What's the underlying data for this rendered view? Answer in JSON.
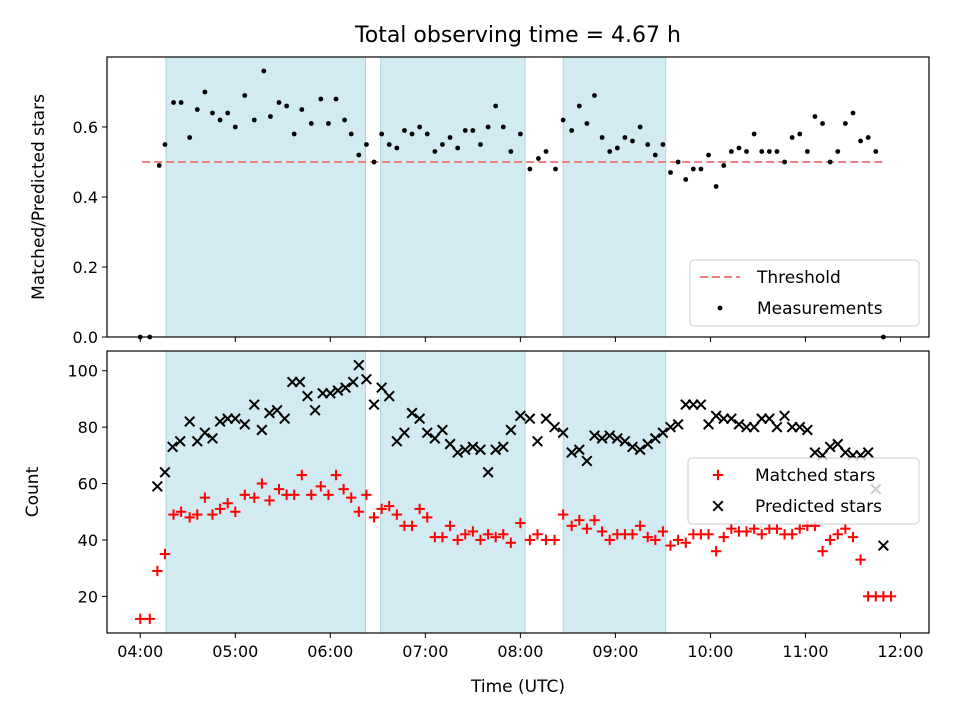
{
  "chart_data": [
    {
      "type": "scatter",
      "title": "Total observing time = 4.67 h",
      "xlabel": "",
      "ylabel": "Matched/Predicted stars",
      "ylim": [
        0,
        0.8
      ],
      "xlim": [
        3.65,
        12.3
      ],
      "yticks": [
        0.0,
        0.2,
        0.4,
        0.6
      ],
      "ytick_labels": [
        "0.0",
        "0.2",
        "0.4",
        "0.6"
      ],
      "xtick_positions": [
        4,
        5,
        6,
        7,
        8,
        9,
        10,
        11,
        12
      ],
      "xtick_labels": [
        "",
        "",
        "",
        "",
        "",
        "",
        "",
        "",
        ""
      ],
      "grid": false,
      "legend_placement": "lower-right",
      "shaded_intervals": [
        [
          4.27,
          6.37
        ],
        [
          6.53,
          8.05
        ],
        [
          8.45,
          9.53
        ]
      ],
      "shade_color": "#add8e6",
      "series": [
        {
          "name": "Threshold",
          "kind": "dashed-line",
          "color": "#f08080",
          "x": [
            4.02,
            11.85
          ],
          "y": [
            0.5,
            0.5
          ]
        },
        {
          "name": "Measurements",
          "kind": "dots",
          "color": "#000000",
          "x": [
            4.0,
            4.1,
            4.2,
            4.26,
            4.35,
            4.43,
            4.52,
            4.6,
            4.68,
            4.76,
            4.84,
            4.92,
            5.0,
            5.1,
            5.2,
            5.3,
            5.37,
            5.46,
            5.54,
            5.62,
            5.7,
            5.8,
            5.9,
            5.98,
            6.06,
            6.15,
            6.22,
            6.3,
            6.38,
            6.46,
            6.54,
            6.62,
            6.7,
            6.78,
            6.86,
            6.94,
            7.02,
            7.1,
            7.18,
            7.26,
            7.34,
            7.42,
            7.5,
            7.58,
            7.66,
            7.74,
            7.82,
            7.9,
            8.0,
            8.1,
            8.19,
            8.27,
            8.37,
            8.45,
            8.54,
            8.62,
            8.7,
            8.78,
            8.86,
            8.94,
            9.02,
            9.1,
            9.18,
            9.26,
            9.34,
            9.42,
            9.5,
            9.58,
            9.66,
            9.74,
            9.82,
            9.9,
            9.98,
            10.06,
            10.14,
            10.22,
            10.3,
            10.38,
            10.46,
            10.54,
            10.62,
            10.7,
            10.78,
            10.86,
            10.94,
            11.02,
            11.1,
            11.18,
            11.26,
            11.34,
            11.42,
            11.5,
            11.58,
            11.66,
            11.74,
            11.82
          ],
          "y": [
            0.0,
            0.0,
            0.49,
            0.55,
            0.67,
            0.67,
            0.57,
            0.65,
            0.7,
            0.64,
            0.62,
            0.64,
            0.6,
            0.69,
            0.62,
            0.76,
            0.63,
            0.67,
            0.66,
            0.58,
            0.65,
            0.61,
            0.68,
            0.61,
            0.68,
            0.62,
            0.58,
            0.52,
            0.55,
            0.5,
            0.58,
            0.55,
            0.54,
            0.59,
            0.58,
            0.6,
            0.58,
            0.53,
            0.55,
            0.57,
            0.54,
            0.59,
            0.59,
            0.55,
            0.6,
            0.66,
            0.6,
            0.53,
            0.58,
            0.48,
            0.51,
            0.53,
            0.48,
            0.62,
            0.59,
            0.66,
            0.61,
            0.69,
            0.57,
            0.53,
            0.54,
            0.57,
            0.56,
            0.6,
            0.55,
            0.52,
            0.55,
            0.47,
            0.5,
            0.45,
            0.48,
            0.48,
            0.52,
            0.43,
            0.49,
            0.53,
            0.54,
            0.53,
            0.58,
            0.53,
            0.53,
            0.53,
            0.5,
            0.57,
            0.58,
            0.53,
            0.63,
            0.61,
            0.5,
            0.53,
            0.61,
            0.64,
            0.56,
            0.57,
            0.53,
            0.0
          ]
        }
      ]
    },
    {
      "type": "scatter",
      "title": "",
      "xlabel": "Time (UTC)",
      "ylabel": "Count",
      "ylim": [
        7,
        107
      ],
      "xlim": [
        3.65,
        12.3
      ],
      "yticks": [
        20,
        40,
        60,
        80,
        100
      ],
      "ytick_labels": [
        "20",
        "40",
        "60",
        "80",
        "100"
      ],
      "xtick_positions": [
        4,
        5,
        6,
        7,
        8,
        9,
        10,
        11,
        12
      ],
      "xtick_labels": [
        "04:00",
        "05:00",
        "06:00",
        "07:00",
        "08:00",
        "09:00",
        "10:00",
        "11:00",
        "12:00"
      ],
      "grid": false,
      "legend_placement": "center-right",
      "shaded_intervals": [
        [
          4.27,
          6.37
        ],
        [
          6.53,
          8.05
        ],
        [
          8.45,
          9.53
        ]
      ],
      "shade_color": "#add8e6",
      "series": [
        {
          "name": "Matched stars",
          "kind": "plus",
          "color": "#ff0000",
          "x": [
            4.0,
            4.1,
            4.18,
            4.26,
            4.35,
            4.43,
            4.52,
            4.6,
            4.68,
            4.76,
            4.84,
            4.92,
            5.0,
            5.1,
            5.2,
            5.28,
            5.36,
            5.46,
            5.54,
            5.62,
            5.7,
            5.8,
            5.9,
            5.98,
            6.06,
            6.14,
            6.22,
            6.3,
            6.38,
            6.46,
            6.54,
            6.62,
            6.7,
            6.78,
            6.86,
            6.94,
            7.02,
            7.1,
            7.18,
            7.26,
            7.34,
            7.42,
            7.5,
            7.58,
            7.66,
            7.74,
            7.82,
            7.9,
            8.0,
            8.1,
            8.18,
            8.27,
            8.36,
            8.45,
            8.54,
            8.62,
            8.7,
            8.78,
            8.86,
            8.94,
            9.02,
            9.1,
            9.18,
            9.26,
            9.34,
            9.42,
            9.5,
            9.58,
            9.66,
            9.74,
            9.82,
            9.9,
            9.98,
            10.06,
            10.14,
            10.22,
            10.3,
            10.38,
            10.46,
            10.54,
            10.62,
            10.7,
            10.78,
            10.86,
            10.94,
            11.02,
            11.1,
            11.18,
            11.26,
            11.34,
            11.42,
            11.5,
            11.58,
            11.66,
            11.74,
            11.82,
            11.9
          ],
          "y": [
            12,
            12,
            29,
            35,
            49,
            50,
            48,
            49,
            55,
            49,
            51,
            53,
            50,
            56,
            55,
            60,
            54,
            58,
            56,
            56,
            63,
            56,
            59,
            56,
            63,
            58,
            55,
            50,
            56,
            48,
            51,
            52,
            49,
            45,
            45,
            51,
            48,
            41,
            41,
            45,
            40,
            42,
            43,
            40,
            42,
            41,
            42,
            39,
            46,
            40,
            42,
            40,
            40,
            49,
            45,
            47,
            44,
            47,
            43,
            40,
            42,
            42,
            42,
            45,
            41,
            40,
            43,
            38,
            40,
            39,
            42,
            42,
            42,
            36,
            41,
            44,
            43,
            43,
            44,
            42,
            44,
            44,
            42,
            42,
            44,
            45,
            45,
            36,
            40,
            42,
            44,
            41,
            33,
            20,
            20,
            20,
            20
          ]
        },
        {
          "name": "Predicted stars",
          "kind": "cross",
          "color": "#000000",
          "x": [
            4.18,
            4.26,
            4.34,
            4.42,
            4.52,
            4.6,
            4.68,
            4.76,
            4.84,
            4.92,
            5.0,
            5.1,
            5.2,
            5.28,
            5.36,
            5.44,
            5.52,
            5.6,
            5.68,
            5.76,
            5.84,
            5.92,
            6.0,
            6.08,
            6.16,
            6.24,
            6.3,
            6.38,
            6.46,
            6.54,
            6.62,
            6.7,
            6.78,
            6.86,
            6.94,
            7.02,
            7.1,
            7.18,
            7.26,
            7.34,
            7.42,
            7.5,
            7.58,
            7.66,
            7.74,
            7.82,
            7.9,
            8.0,
            8.1,
            8.18,
            8.27,
            8.36,
            8.45,
            8.54,
            8.62,
            8.7,
            8.78,
            8.86,
            8.94,
            9.02,
            9.1,
            9.18,
            9.26,
            9.34,
            9.42,
            9.5,
            9.58,
            9.66,
            9.74,
            9.82,
            9.9,
            9.98,
            10.06,
            10.14,
            10.22,
            10.3,
            10.38,
            10.46,
            10.54,
            10.62,
            10.7,
            10.78,
            10.86,
            10.94,
            11.02,
            11.1,
            11.18,
            11.26,
            11.34,
            11.42,
            11.5,
            11.58,
            11.66,
            11.74,
            11.82
          ],
          "y": [
            59,
            64,
            73,
            75,
            82,
            75,
            78,
            76,
            82,
            83,
            83,
            81,
            88,
            79,
            85,
            86,
            83,
            96,
            96,
            91,
            86,
            92,
            92,
            93,
            94,
            96,
            102,
            97,
            88,
            94,
            91,
            75,
            78,
            85,
            83,
            78,
            76,
            79,
            74,
            71,
            72,
            73,
            72,
            64,
            72,
            73,
            79,
            84,
            83,
            75,
            83,
            80,
            78,
            71,
            72,
            68,
            77,
            76,
            77,
            76,
            75,
            73,
            72,
            74,
            76,
            78,
            80,
            81,
            88,
            88,
            88,
            81,
            84,
            83,
            83,
            81,
            80,
            80,
            83,
            83,
            80,
            84,
            80,
            80,
            79,
            71,
            70,
            73,
            74,
            71,
            70,
            70,
            71,
            58,
            38
          ]
        }
      ]
    }
  ]
}
